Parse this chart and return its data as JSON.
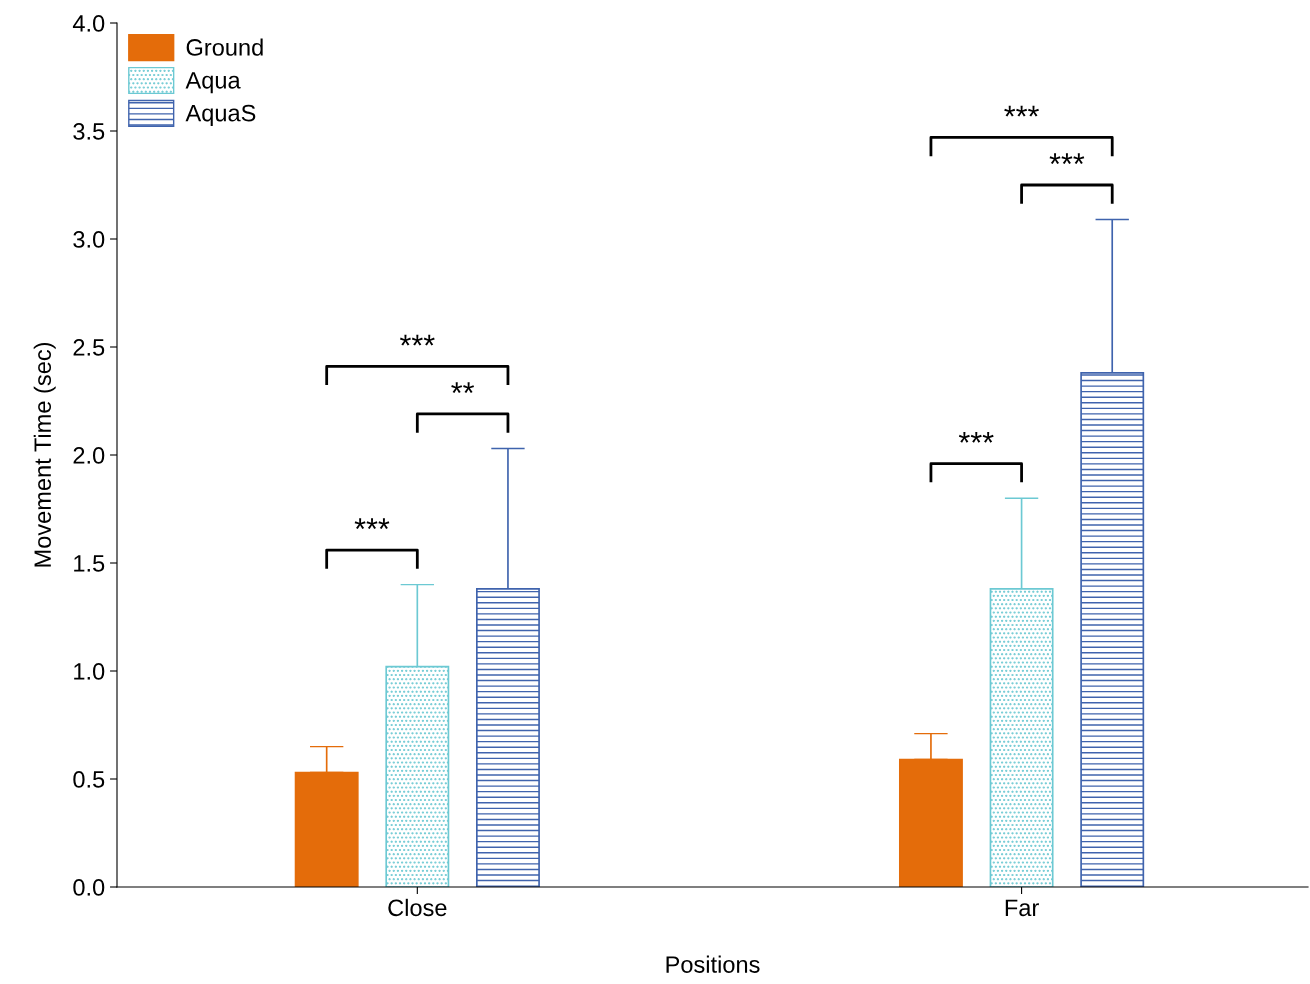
{
  "chart_data": {
    "type": "bar",
    "xlabel": "Positions",
    "ylabel": "Movement Time (sec)",
    "categories": [
      "Close",
      "Far"
    ],
    "series": [
      {
        "name": "Ground",
        "color": "#e46c0a",
        "values": [
          0.53,
          0.59
        ],
        "errors": [
          [
            0.53,
            0.65
          ],
          [
            0.59,
            0.71
          ]
        ]
      },
      {
        "name": "Aqua",
        "color": "#6cc9d3",
        "values": [
          1.02,
          1.38
        ],
        "errors": [
          [
            1.02,
            1.4
          ],
          [
            1.38,
            1.8
          ]
        ]
      },
      {
        "name": "AquaS",
        "color": "#3f63ad",
        "values": [
          1.38,
          2.38
        ],
        "errors": [
          [
            1.38,
            2.03
          ],
          [
            2.38,
            3.09
          ]
        ]
      }
    ],
    "ylim": [
      0.0,
      4.0
    ],
    "yticks": [
      {
        "value": 0,
        "label": "0.0"
      },
      0.5,
      {
        "value": 1,
        "label": "1.0"
      },
      1.5,
      {
        "value": 2,
        "label": "2.0"
      },
      2.5,
      {
        "value": 3,
        "label": "3.0"
      },
      3.5,
      {
        "value": 4,
        "label": "4.0"
      }
    ],
    "legend": "top left",
    "grid": false,
    "annotations": [
      "***",
      "**",
      "***",
      "***",
      "***",
      "***"
    ]
  }
}
